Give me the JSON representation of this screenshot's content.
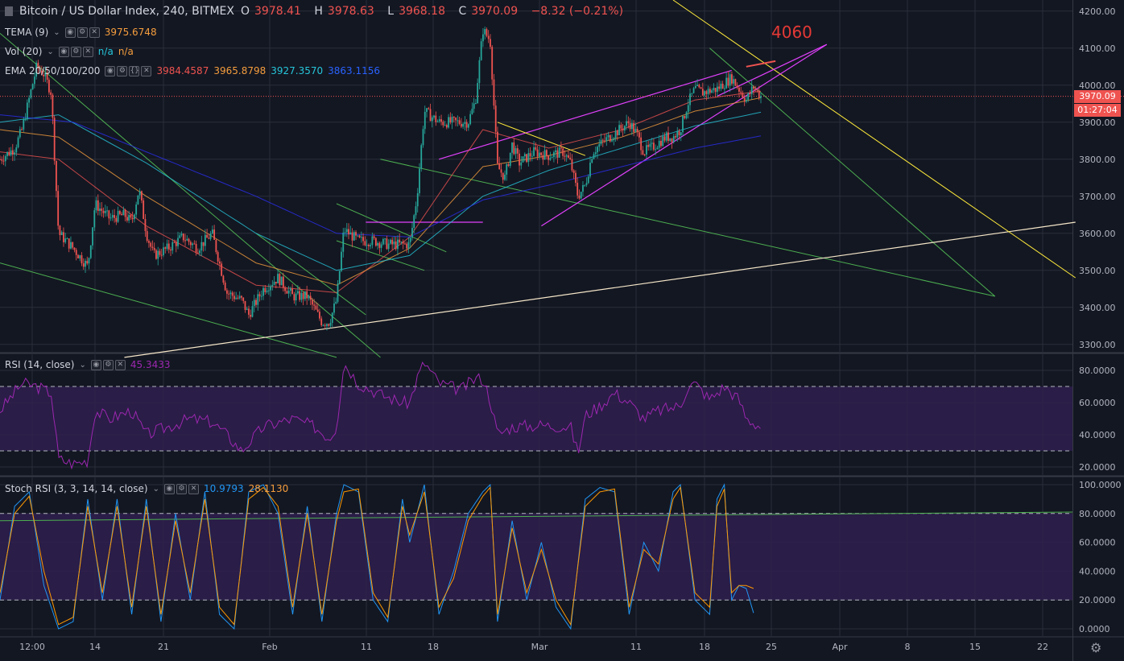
{
  "header": {
    "symbol": "Bitcoin / US Dollar Index, 240, BITMEX",
    "ohlc": {
      "o_label": "O",
      "o": "3978.41",
      "h_label": "H",
      "h": "3978.63",
      "l_label": "L",
      "l": "3968.18",
      "c_label": "C",
      "c": "3970.09",
      "change": "−8.32 (−0.21%)"
    }
  },
  "indicators": {
    "tema": {
      "label": "TEMA (9)",
      "value": "3975.6748"
    },
    "vol": {
      "label": "Vol (20)",
      "v1": "n/a",
      "v2": "n/a"
    },
    "ema": {
      "label": "EMA 20/50/100/200",
      "values": [
        "3984.4587",
        "3965.8798",
        "3927.3570",
        "3863.1156"
      ]
    },
    "rsi": {
      "label": "RSI (14, close)",
      "value": "45.3433"
    },
    "stoch": {
      "label": "Stoch RSI (3, 3, 14, 14, close)",
      "k": "10.9793",
      "d": "28.1130"
    }
  },
  "annotation": "4060",
  "price_tag": {
    "price": "3970.09",
    "countdown": "01:27:04"
  },
  "colors": {
    "bg": "#131722",
    "grid": "#2a2e39",
    "up": "#26a69a",
    "down": "#ef5350",
    "ema20": "#ef5350",
    "ema50": "#f59d3d",
    "ema100": "#26c6da",
    "ema200": "#2a2ef0",
    "rsi": "#9c27b0",
    "stochK": "#2196f3",
    "stochD": "#ff9800",
    "band": "#2f1f4d",
    "trend_green": "#4caf50",
    "trend_magenta": "#e040fb",
    "trend_yellow": "#ffeb3b",
    "trend_white": "#f5e6c8"
  },
  "chart_data": [
    {
      "type": "candlestick",
      "title": "Bitcoin / US Dollar Index, 240, BITMEX",
      "ylim": [
        3280,
        4230
      ],
      "y_ticks": [
        "4200.00",
        "4100.00",
        "4000.00",
        "3900.00",
        "3800.00",
        "3700.00",
        "3600.00",
        "3500.00",
        "3400.00",
        "3300.00"
      ],
      "x_ticks": [
        "12:00",
        "14",
        "21",
        "Feb",
        "11",
        "18",
        "Mar",
        "11",
        "18",
        "25",
        "Apr",
        "8",
        "15",
        "22"
      ],
      "close_path": [
        [
          0,
          3800
        ],
        [
          2,
          3830
        ],
        [
          3,
          3880
        ],
        [
          5,
          4050
        ],
        [
          6,
          4030
        ],
        [
          7,
          3980
        ],
        [
          8,
          3600
        ],
        [
          10,
          3560
        ],
        [
          12,
          3510
        ],
        [
          13,
          3680
        ],
        [
          15,
          3640
        ],
        [
          17,
          3650
        ],
        [
          18,
          3630
        ],
        [
          19,
          3720
        ],
        [
          20,
          3600
        ],
        [
          21,
          3540
        ],
        [
          23,
          3560
        ],
        [
          25,
          3590
        ],
        [
          27,
          3560
        ],
        [
          29,
          3600
        ],
        [
          30,
          3520
        ],
        [
          31,
          3440
        ],
        [
          33,
          3420
        ],
        [
          34,
          3380
        ],
        [
          36,
          3450
        ],
        [
          38,
          3480
        ],
        [
          40,
          3430
        ],
        [
          42,
          3430
        ],
        [
          44,
          3360
        ],
        [
          45,
          3360
        ],
        [
          46,
          3420
        ],
        [
          47,
          3610
        ],
        [
          49,
          3580
        ],
        [
          51,
          3580
        ],
        [
          53,
          3570
        ],
        [
          56,
          3570
        ],
        [
          57,
          3700
        ],
        [
          58,
          3930
        ],
        [
          60,
          3900
        ],
        [
          62,
          3900
        ],
        [
          64,
          3900
        ],
        [
          65,
          3960
        ],
        [
          66,
          4150
        ],
        [
          67,
          4120
        ],
        [
          68,
          3780
        ],
        [
          69,
          3750
        ],
        [
          70,
          3840
        ],
        [
          71,
          3790
        ],
        [
          73,
          3820
        ],
        [
          75,
          3810
        ],
        [
          77,
          3820
        ],
        [
          78,
          3790
        ],
        [
          79,
          3700
        ],
        [
          80,
          3730
        ],
        [
          81,
          3820
        ],
        [
          82,
          3840
        ],
        [
          84,
          3870
        ],
        [
          86,
          3900
        ],
        [
          87,
          3870
        ],
        [
          88,
          3820
        ],
        [
          89,
          3830
        ],
        [
          91,
          3860
        ],
        [
          92,
          3860
        ],
        [
          93,
          3880
        ],
        [
          94,
          3950
        ],
        [
          95,
          3990
        ],
        [
          96,
          3980
        ],
        [
          98,
          3990
        ],
        [
          100,
          4020
        ],
        [
          101,
          3990
        ],
        [
          102,
          3960
        ],
        [
          103,
          3995
        ],
        [
          104,
          3970
        ]
      ],
      "series": [
        {
          "name": "EMA 20",
          "values": [
            [
              0,
              3820
            ],
            [
              8,
              3800
            ],
            [
              20,
              3620
            ],
            [
              35,
              3460
            ],
            [
              46,
              3440
            ],
            [
              56,
              3590
            ],
            [
              66,
              3880
            ],
            [
              75,
              3830
            ],
            [
              85,
              3880
            ],
            [
              95,
              3960
            ],
            [
              104,
              3984
            ]
          ]
        },
        {
          "name": "EMA 50",
          "values": [
            [
              0,
              3880
            ],
            [
              8,
              3860
            ],
            [
              20,
              3700
            ],
            [
              35,
              3520
            ],
            [
              46,
              3460
            ],
            [
              56,
              3560
            ],
            [
              66,
              3780
            ],
            [
              75,
              3810
            ],
            [
              85,
              3860
            ],
            [
              95,
              3930
            ],
            [
              104,
              3966
            ]
          ]
        },
        {
          "name": "EMA 100",
          "values": [
            [
              0,
              3900
            ],
            [
              8,
              3920
            ],
            [
              20,
              3790
            ],
            [
              35,
              3600
            ],
            [
              46,
              3500
            ],
            [
              56,
              3540
            ],
            [
              66,
              3700
            ],
            [
              75,
              3770
            ],
            [
              85,
              3830
            ],
            [
              95,
              3890
            ],
            [
              104,
              3927
            ]
          ]
        },
        {
          "name": "EMA 200",
          "values": [
            [
              0,
              3920
            ],
            [
              10,
              3900
            ],
            [
              20,
              3820
            ],
            [
              35,
              3700
            ],
            [
              46,
              3600
            ],
            [
              56,
              3590
            ],
            [
              66,
              3690
            ],
            [
              75,
              3730
            ],
            [
              85,
              3780
            ],
            [
              95,
              3830
            ],
            [
              104,
              3863
            ]
          ]
        }
      ]
    },
    {
      "type": "line",
      "title": "RSI (14, close)",
      "ylim": [
        15,
        90
      ],
      "y_ticks": [
        "80.0000",
        "60.0000",
        "40.0000",
        "20.0000"
      ],
      "bands": [
        30,
        70
      ],
      "values": [
        [
          0,
          55
        ],
        [
          3,
          72
        ],
        [
          5,
          70
        ],
        [
          7,
          66
        ],
        [
          8,
          25
        ],
        [
          10,
          22
        ],
        [
          12,
          24
        ],
        [
          13,
          55
        ],
        [
          15,
          50
        ],
        [
          18,
          55
        ],
        [
          20,
          40
        ],
        [
          23,
          45
        ],
        [
          26,
          50
        ],
        [
          29,
          48
        ],
        [
          31,
          40
        ],
        [
          33,
          30
        ],
        [
          36,
          45
        ],
        [
          40,
          50
        ],
        [
          43,
          45
        ],
        [
          45,
          38
        ],
        [
          46,
          45
        ],
        [
          47,
          85
        ],
        [
          49,
          72
        ],
        [
          52,
          65
        ],
        [
          55,
          60
        ],
        [
          56,
          60
        ],
        [
          57,
          75
        ],
        [
          58,
          85
        ],
        [
          60,
          72
        ],
        [
          63,
          68
        ],
        [
          65,
          75
        ],
        [
          66,
          75
        ],
        [
          67,
          62
        ],
        [
          68,
          40
        ],
        [
          70,
          45
        ],
        [
          74,
          46
        ],
        [
          78,
          45
        ],
        [
          79,
          28
        ],
        [
          80,
          52
        ],
        [
          82,
          58
        ],
        [
          84,
          66
        ],
        [
          86,
          60
        ],
        [
          88,
          50
        ],
        [
          90,
          55
        ],
        [
          93,
          58
        ],
        [
          94,
          70
        ],
        [
          95,
          72
        ],
        [
          97,
          62
        ],
        [
          99,
          70
        ],
        [
          100,
          66
        ],
        [
          101,
          62
        ],
        [
          102,
          50
        ],
        [
          104,
          45
        ]
      ]
    },
    {
      "type": "line",
      "title": "Stoch RSI (3, 3, 14, 14, close)",
      "ylim": [
        -5,
        105
      ],
      "y_ticks": [
        "100.0000",
        "80.0000",
        "60.0000",
        "40.0000",
        "20.0000",
        "0.0000"
      ],
      "bands": [
        20,
        80
      ],
      "series": [
        {
          "name": "%K",
          "values": [
            [
              0,
              20
            ],
            [
              2,
              85
            ],
            [
              4,
              95
            ],
            [
              6,
              30
            ],
            [
              8,
              0
            ],
            [
              10,
              5
            ],
            [
              12,
              90
            ],
            [
              14,
              20
            ],
            [
              16,
              90
            ],
            [
              18,
              10
            ],
            [
              20,
              90
            ],
            [
              22,
              5
            ],
            [
              24,
              80
            ],
            [
              26,
              20
            ],
            [
              28,
              95
            ],
            [
              30,
              10
            ],
            [
              32,
              0
            ],
            [
              34,
              95
            ],
            [
              36,
              100
            ],
            [
              38,
              80
            ],
            [
              40,
              10
            ],
            [
              42,
              85
            ],
            [
              44,
              5
            ],
            [
              46,
              80
            ],
            [
              47,
              100
            ],
            [
              49,
              95
            ],
            [
              51,
              20
            ],
            [
              53,
              5
            ],
            [
              55,
              90
            ],
            [
              56,
              60
            ],
            [
              58,
              100
            ],
            [
              60,
              10
            ],
            [
              62,
              40
            ],
            [
              64,
              80
            ],
            [
              66,
              95
            ],
            [
              67,
              100
            ],
            [
              68,
              5
            ],
            [
              70,
              75
            ],
            [
              72,
              20
            ],
            [
              74,
              60
            ],
            [
              76,
              15
            ],
            [
              78,
              0
            ],
            [
              80,
              90
            ],
            [
              82,
              98
            ],
            [
              84,
              95
            ],
            [
              86,
              10
            ],
            [
              88,
              60
            ],
            [
              90,
              40
            ],
            [
              92,
              95
            ],
            [
              93,
              100
            ],
            [
              95,
              20
            ],
            [
              97,
              10
            ],
            [
              98,
              90
            ],
            [
              99,
              100
            ],
            [
              100,
              20
            ],
            [
              101,
              30
            ],
            [
              102,
              28
            ],
            [
              103,
              11
            ]
          ]
        },
        {
          "name": "%D",
          "values": [
            [
              0,
              25
            ],
            [
              2,
              80
            ],
            [
              4,
              92
            ],
            [
              6,
              40
            ],
            [
              8,
              3
            ],
            [
              10,
              8
            ],
            [
              12,
              85
            ],
            [
              14,
              25
            ],
            [
              16,
              85
            ],
            [
              18,
              15
            ],
            [
              20,
              85
            ],
            [
              22,
              10
            ],
            [
              24,
              75
            ],
            [
              26,
              25
            ],
            [
              28,
              90
            ],
            [
              30,
              15
            ],
            [
              32,
              3
            ],
            [
              34,
              90
            ],
            [
              36,
              98
            ],
            [
              38,
              85
            ],
            [
              40,
              15
            ],
            [
              42,
              80
            ],
            [
              44,
              10
            ],
            [
              46,
              75
            ],
            [
              47,
              95
            ],
            [
              49,
              97
            ],
            [
              51,
              25
            ],
            [
              53,
              8
            ],
            [
              55,
              85
            ],
            [
              56,
              65
            ],
            [
              58,
              95
            ],
            [
              60,
              15
            ],
            [
              62,
              35
            ],
            [
              64,
              75
            ],
            [
              66,
              92
            ],
            [
              67,
              98
            ],
            [
              68,
              10
            ],
            [
              70,
              70
            ],
            [
              72,
              25
            ],
            [
              74,
              55
            ],
            [
              76,
              20
            ],
            [
              78,
              3
            ],
            [
              80,
              85
            ],
            [
              82,
              95
            ],
            [
              84,
              97
            ],
            [
              86,
              15
            ],
            [
              88,
              55
            ],
            [
              90,
              45
            ],
            [
              92,
              90
            ],
            [
              93,
              98
            ],
            [
              95,
              25
            ],
            [
              97,
              15
            ],
            [
              98,
              85
            ],
            [
              99,
              97
            ],
            [
              100,
              25
            ],
            [
              101,
              30
            ],
            [
              102,
              30
            ],
            [
              103,
              28
            ]
          ]
        }
      ]
    }
  ]
}
